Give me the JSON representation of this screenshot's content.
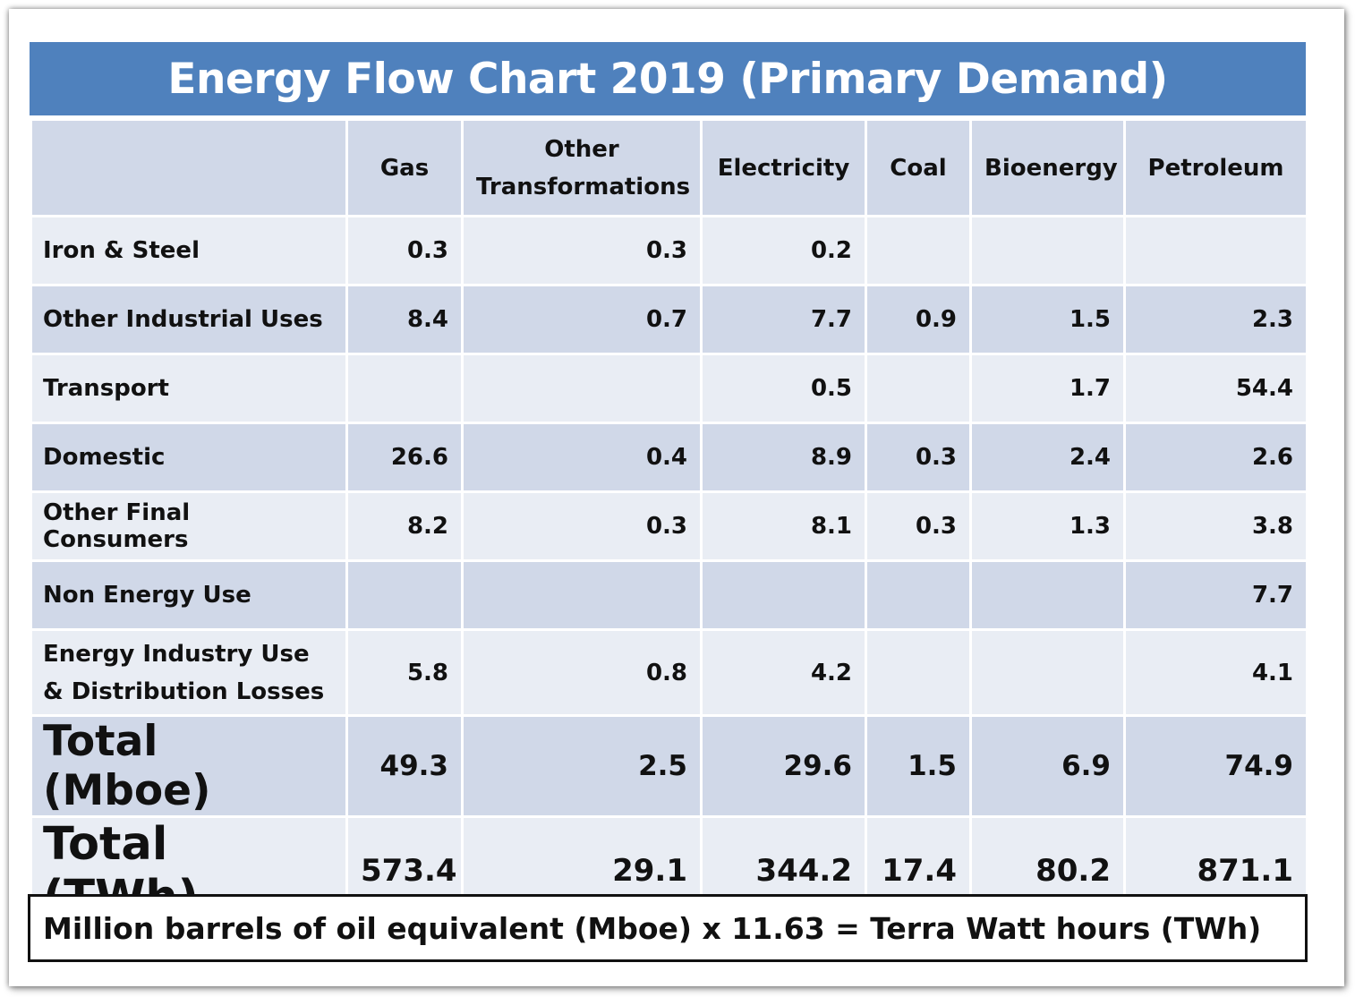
{
  "title": "Energy Flow Chart 2019 (Primary Demand)",
  "table": {
    "corner": "",
    "columns": [
      "Gas",
      "Other Transformations",
      "Electricity",
      "Coal",
      "Bioenergy",
      "Petroleum"
    ],
    "rows": [
      {
        "label": "Iron & Steel",
        "values": [
          "0.3",
          "0.3",
          "0.2",
          "",
          "",
          ""
        ]
      },
      {
        "label": "Other Industrial Uses",
        "values": [
          "8.4",
          "0.7",
          "7.7",
          "0.9",
          "1.5",
          "2.3"
        ]
      },
      {
        "label": "Transport",
        "values": [
          "",
          "",
          "0.5",
          "",
          "1.7",
          "54.4"
        ]
      },
      {
        "label": "Domestic",
        "values": [
          "26.6",
          "0.4",
          "8.9",
          "0.3",
          "2.4",
          "2.6"
        ]
      },
      {
        "label": "Other Final Consumers",
        "values": [
          "8.2",
          "0.3",
          "8.1",
          "0.3",
          "1.3",
          "3.8"
        ]
      },
      {
        "label": "Non Energy Use",
        "values": [
          "",
          "",
          "",
          "",
          "",
          "7.7"
        ]
      },
      {
        "label": "Energy Industry Use & Distribution Losses",
        "values": [
          "5.8",
          "0.8",
          "4.2",
          "",
          "",
          "4.1"
        ]
      },
      {
        "label": "Total (Mboe)",
        "values": [
          "49.3",
          "2.5",
          "29.6",
          "1.5",
          "6.9",
          "74.9"
        ]
      },
      {
        "label": "Total (TWh)",
        "values": [
          "573.4",
          "29.1",
          "344.2",
          "17.4",
          "80.2",
          "871.1"
        ]
      }
    ]
  },
  "note": "Million barrels of oil equivalent (Mboe) x 11.63 = Terra Watt hours (TWh)",
  "colors": {
    "title_bg": "#4f81bd",
    "header_bg": "#d0d8e8",
    "row_light": "#e9edf4",
    "row_dark": "#d0d8e8"
  }
}
